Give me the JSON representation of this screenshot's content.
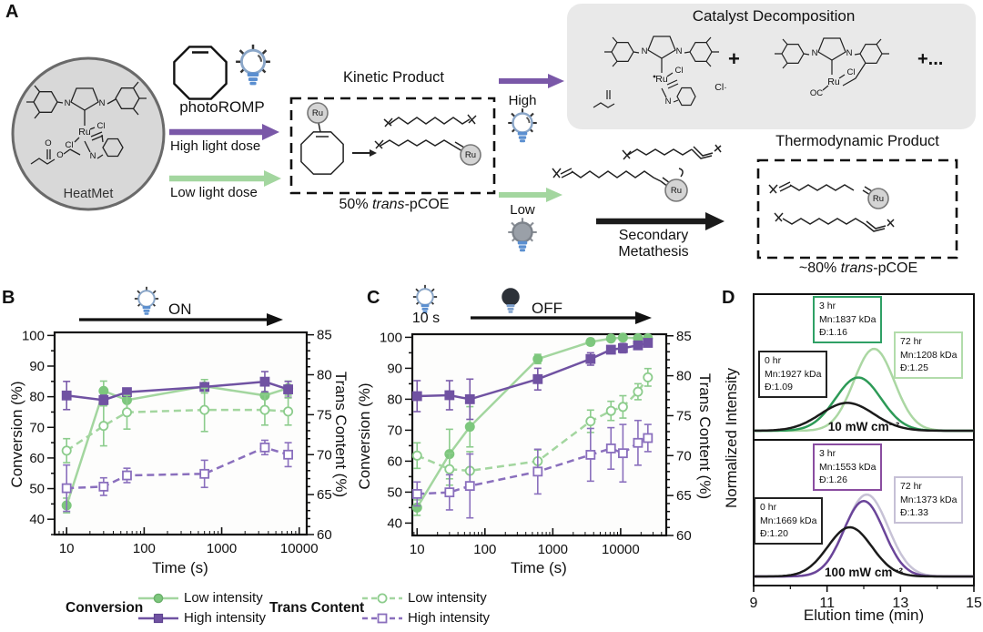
{
  "figure": {
    "panel_labels": {
      "a": "A",
      "b": "B",
      "c": "C",
      "d": "D"
    }
  },
  "panel_a": {
    "heatmet_caption": "HeatMet",
    "photoromp": "photoROMP",
    "high_light_dose": "High light dose",
    "low_light_dose": "Low light dose",
    "kinetic_title": "Kinetic Product",
    "kinetic_caption_prefix": "50% ",
    "kinetic_caption_italic": "trans",
    "kinetic_caption_suffix": "-pCOE",
    "high": "High",
    "low": "Low",
    "catalyst_title": "Catalyst Decomposition",
    "plus": "+",
    "plus_more": "+...",
    "secondary_line1": "Secondary",
    "secondary_line2": "Metathesis",
    "thermo_title": "Thermodynamic Product",
    "thermo_caption_prefix": "~80% ",
    "thermo_caption_italic": "trans",
    "thermo_caption_suffix": "-pCOE",
    "atoms": {
      "ru": "Ru",
      "cl": "Cl",
      "cl_radical": "Cl·",
      "n": "N",
      "o": "O",
      "oc": "OC"
    }
  },
  "legend": {
    "conversion_header": "Conversion",
    "trans_header": "Trans Content",
    "low_intensity": "Low intensity",
    "high_intensity": "High intensity"
  },
  "colors": {
    "green_line": "#a3d69f",
    "green_marker": "#7dc77d",
    "purple": "#7052a2",
    "purple_light": "#8a6fbd",
    "dark_green": "#2d9a57",
    "light_green": "#abd7a3",
    "dark_purple": "#6a4499",
    "lavender": "#c7c2d6",
    "black_curve": "#1b1b1b",
    "box_grey": "#e9e9e9",
    "bulb_blue": "#5b8fd0"
  },
  "chart_data": [
    {
      "id": "B",
      "type": "line",
      "header": {
        "label": "ON",
        "bulb": "on"
      },
      "xlabel": "Time (s)",
      "ylabel_left": "Conversion (%)",
      "ylabel_right": "Trans Content (%)",
      "xscale": "log",
      "xlim": [
        7,
        12500
      ],
      "xticks": [
        10,
        100,
        1000,
        10000
      ],
      "ylim_left": [
        35,
        101
      ],
      "yticks_left": [
        40,
        50,
        60,
        70,
        80,
        90,
        100
      ],
      "ylim_right": [
        60,
        85.3
      ],
      "yticks_right": [
        60,
        65,
        70,
        75,
        80,
        85
      ],
      "x": [
        10,
        30,
        60,
        600,
        3600,
        7200
      ],
      "series": [
        {
          "name": "Low intensity",
          "quantity": "Conversion",
          "axis": "left",
          "dashed": false,
          "marker": "circle",
          "open": false,
          "line_color": "#a3d69f",
          "marker_color": "#7dc77d",
          "err_color": "#8ccc8c",
          "y": [
            44.5,
            81.9,
            78.9,
            83.4,
            80.4,
            82.8
          ],
          "err": [
            2.4,
            3.2,
            3.4,
            2.2,
            3.9,
            2.3
          ]
        },
        {
          "name": "High intensity",
          "quantity": "Conversion",
          "axis": "left",
          "dashed": false,
          "marker": "square",
          "open": false,
          "line_color": "#7052a2",
          "marker_color": "#7052a2",
          "err_color": "#7b5cab",
          "y": [
            80.4,
            78.9,
            81.5,
            83.2,
            84.9,
            82.4
          ],
          "err": [
            4.6,
            1.6,
            1.2,
            1.3,
            3.3,
            2.6
          ]
        },
        {
          "name": "Low intensity",
          "quantity": "Trans Content",
          "axis": "right",
          "dashed": true,
          "marker": "circle",
          "open": true,
          "line_color": "#a3d69f",
          "marker_color": "#8ccc8c",
          "err_color": "#8ccc8c",
          "y": [
            70.5,
            73.6,
            75.3,
            75.6,
            75.6,
            75.4
          ],
          "err": [
            1.5,
            2.5,
            2.1,
            2.7,
            1.9,
            1.7
          ]
        },
        {
          "name": "High intensity",
          "quantity": "Trans Content",
          "axis": "right",
          "dashed": true,
          "marker": "square",
          "open": true,
          "line_color": "#8a6fbd",
          "marker_color": "#8a6fbd",
          "err_color": "#8a6fbd",
          "y": [
            65.8,
            66.0,
            67.4,
            67.6,
            70.9,
            70.0
          ],
          "err": [
            2.9,
            1.1,
            0.9,
            1.7,
            0.9,
            1.5
          ]
        }
      ]
    },
    {
      "id": "C",
      "type": "line",
      "header": {
        "pre_label": "10 s",
        "label": "OFF",
        "bulb_pre": "on",
        "bulb": "off"
      },
      "xlabel": "Time (s)",
      "ylabel_left": "Conversion (%)",
      "ylabel_right": "Trans Content (%)",
      "xscale": "log",
      "xlim": [
        8.5,
        47000
      ],
      "xticks": [
        10,
        100,
        1000,
        10000
      ],
      "ylim_left": [
        36,
        101
      ],
      "yticks_left": [
        40,
        50,
        60,
        70,
        80,
        90,
        100
      ],
      "ylim_right": [
        60,
        85.2
      ],
      "yticks_right": [
        60,
        65,
        70,
        75,
        80,
        85
      ],
      "x": [
        10,
        30,
        60,
        600,
        3600,
        7200,
        10800,
        18000,
        25200
      ],
      "series": [
        {
          "name": "Low intensity",
          "quantity": "Conversion",
          "axis": "left",
          "dashed": false,
          "marker": "circle",
          "open": false,
          "line_color": "#a3d69f",
          "marker_color": "#7dc77d",
          "err_color": "#8ccc8c",
          "y": [
            45,
            62.3,
            71.1,
            93,
            98.5,
            99.6,
            99.9,
            99.7,
            99.7
          ],
          "err": [
            2.5,
            8,
            6.5,
            1.5,
            1,
            0.7,
            0.6,
            0.6,
            0.6
          ]
        },
        {
          "name": "High intensity",
          "quantity": "Conversion",
          "axis": "left",
          "dashed": false,
          "marker": "square",
          "open": false,
          "line_color": "#7052a2",
          "marker_color": "#7052a2",
          "err_color": "#7b5cab",
          "y": [
            81,
            81.3,
            80,
            86.5,
            93,
            96,
            96.5,
            97.4,
            98.2
          ],
          "err": [
            5,
            4.7,
            6.5,
            3.5,
            2,
            1.2,
            1.5,
            1,
            0.8
          ]
        },
        {
          "name": "Low intensity",
          "quantity": "Trans Content",
          "axis": "right",
          "dashed": true,
          "marker": "circle",
          "open": true,
          "line_color": "#a3d69f",
          "marker_color": "#8ccc8c",
          "err_color": "#8ccc8c",
          "y": [
            70.0,
            68.3,
            68.1,
            69.3,
            74.3,
            75.6,
            76.1,
            78.0,
            79.8
          ],
          "err": [
            1.6,
            2.0,
            2.4,
            1.4,
            1.4,
            1.2,
            1.4,
            1.0,
            1.1
          ]
        },
        {
          "name": "High intensity",
          "quantity": "Trans Content",
          "axis": "right",
          "dashed": true,
          "marker": "square",
          "open": true,
          "line_color": "#8a6fbd",
          "marker_color": "#8a6fbd",
          "err_color": "#8a6fbd",
          "y": [
            65.2,
            65.4,
            66.2,
            68.0,
            70.1,
            70.9,
            70.3,
            71.6,
            72.2
          ],
          "err": [
            1.5,
            2.2,
            4.0,
            2.8,
            3.3,
            2.6,
            3.6,
            2.8,
            1.7
          ]
        }
      ]
    },
    {
      "id": "D-top",
      "type": "area",
      "annotation": "10 mW cm⁻²",
      "xlim": [
        9,
        15
      ],
      "xticks": [
        9,
        11,
        13,
        15
      ],
      "xminor": [
        10,
        12,
        14
      ],
      "boxes": [
        {
          "time": "0 hr",
          "mn": "Mn:1927 kDa",
          "d": "Đ:1.09",
          "border": "#222222"
        },
        {
          "time": "3 hr",
          "mn": "Mn:1837 kDa",
          "d": "Đ:1.16",
          "border": "#2fa065"
        },
        {
          "time": "72 hr",
          "mn": "Mn:1208 kDa",
          "d": "Đ:1.25",
          "border": "#b2dcab"
        }
      ],
      "curves": [
        {
          "label": "72 hr",
          "color": "#abd7a3",
          "center": 12.28,
          "height": 1.0,
          "sigma": 0.55
        },
        {
          "label": "3 hr",
          "color": "#2d9a57",
          "center": 11.85,
          "height": 0.65,
          "sigma": 0.62
        },
        {
          "label": "0 hr",
          "color": "#1b1b1b",
          "center": 11.55,
          "height": 0.34,
          "sigma": 0.72
        }
      ]
    },
    {
      "id": "D-bottom",
      "type": "area",
      "annotation": "100 mW cm⁻²",
      "xlim": [
        9,
        15
      ],
      "xticks": [
        9,
        11,
        13,
        15
      ],
      "xminor": [
        10,
        12,
        14
      ],
      "boxes": [
        {
          "time": "0 hr",
          "mn": "Mn:1669 kDa",
          "d": "Đ:1.20",
          "border": "#222222"
        },
        {
          "time": "3 hr",
          "mn": "Mn:1553 kDa",
          "d": "Đ:1.26",
          "border": "#8a4da0"
        },
        {
          "time": "72 hr",
          "mn": "Mn:1373 kDa",
          "d": "Đ:1.33",
          "border": "#c6c0d6"
        }
      ],
      "curves": [
        {
          "label": "72 hr",
          "color": "#c7c2d6",
          "center": 12.08,
          "height": 1.0,
          "sigma": 0.58
        },
        {
          "label": "3 hr",
          "color": "#6a4499",
          "center": 12.0,
          "height": 0.92,
          "sigma": 0.55
        },
        {
          "label": "0 hr",
          "color": "#1b1b1b",
          "center": 11.62,
          "height": 0.6,
          "sigma": 0.6
        }
      ]
    }
  ],
  "panel_d": {
    "ylabel": "Normalized Intensity",
    "xlabel": "Elution time (min)"
  }
}
